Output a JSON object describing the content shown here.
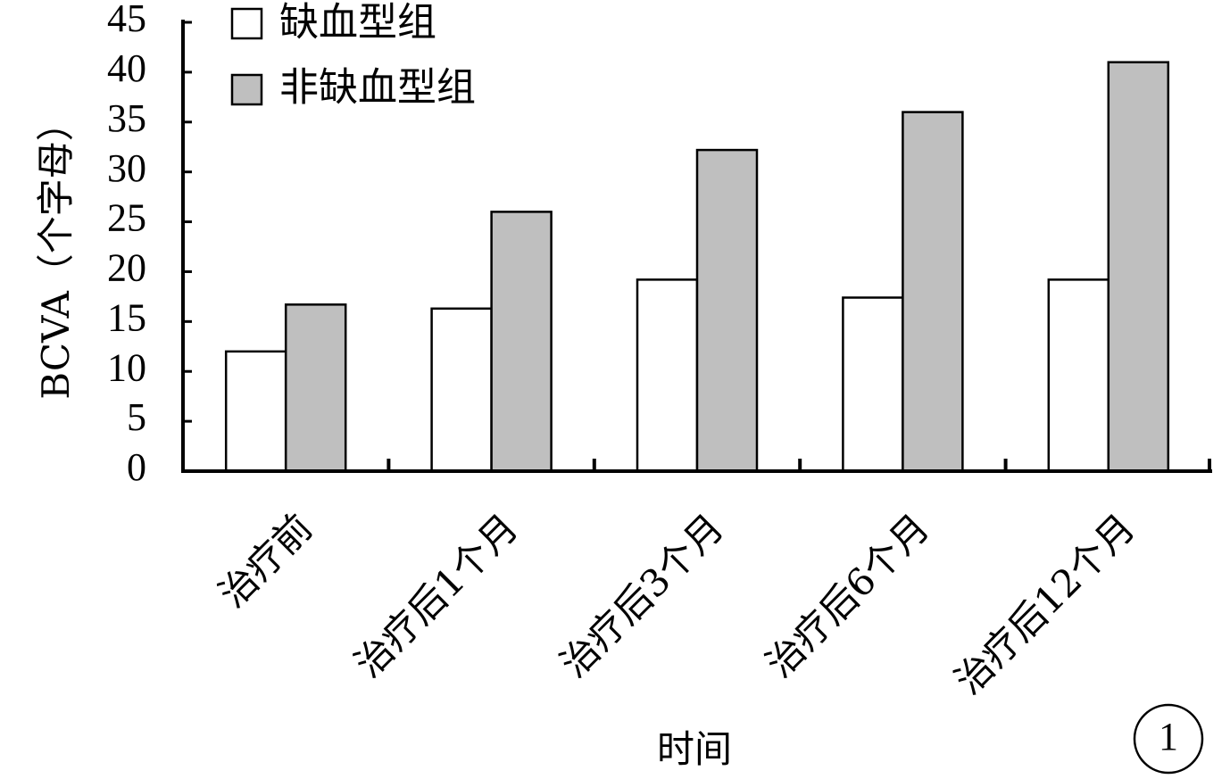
{
  "chart_data": {
    "type": "bar",
    "categories": [
      "治疗前",
      "治疗后1个月",
      "治疗后3个月",
      "治疗后6个月",
      "治疗后12个月"
    ],
    "series": [
      {
        "name": "缺血型组",
        "values": [
          12,
          16.3,
          19.2,
          17.4,
          19.2
        ],
        "color": "#ffffff"
      },
      {
        "name": "非缺血型组",
        "values": [
          16.7,
          26,
          32.2,
          36,
          41
        ],
        "color": "#bfbfbf"
      }
    ],
    "title": "",
    "xlabel": "时间",
    "ylabel": "BCVA（个字母）",
    "ylim": [
      0,
      45
    ],
    "yticks": [
      0,
      5,
      10,
      15,
      20,
      25,
      30,
      35,
      40,
      45
    ],
    "grid": false,
    "legend_position": "top-left",
    "panel_label": "1"
  }
}
